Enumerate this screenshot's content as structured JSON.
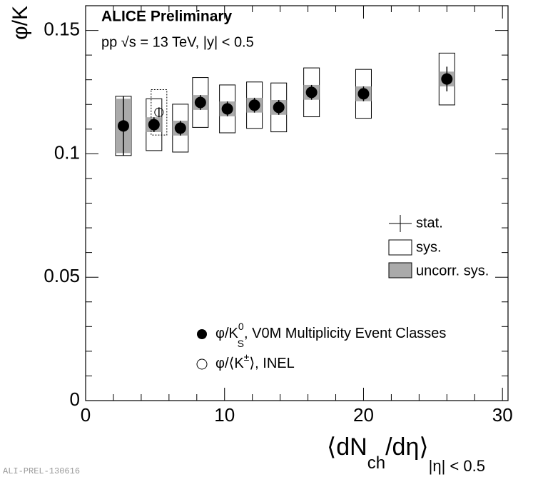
{
  "chart_data": {
    "type": "errorbar",
    "title": "ALICE Preliminary",
    "subtitle": "pp √s = 13 TeV, |y| < 0.5",
    "y_label": "φ/K",
    "x_label": [
      "⟨dN",
      "ch",
      "/dη⟩",
      "|η| < 0.5"
    ],
    "watermark": "ALI-PREL-130616",
    "xlim": [
      0,
      30.4
    ],
    "ylim": [
      0,
      0.16
    ],
    "xticks": [
      0,
      10,
      20,
      30
    ],
    "yticks": [
      0,
      0.05,
      0.1,
      0.15
    ],
    "xticks_minor": [
      2,
      4,
      6,
      8,
      12,
      14,
      16,
      18,
      22,
      24,
      26,
      28
    ],
    "yticks_minor": [
      0.01,
      0.02,
      0.03,
      0.04,
      0.06,
      0.07,
      0.08,
      0.09,
      0.11,
      0.12,
      0.13,
      0.14
    ],
    "error_legend": [
      "stat.",
      "sys.",
      "uncorr. sys."
    ],
    "series": [
      {
        "name": [
          "φ/K",
          "0",
          "S",
          ", V0M Multiplicity Event Classes"
        ],
        "marker": "filled",
        "color": "#000000",
        "x": [
          2.72,
          4.92,
          6.82,
          8.26,
          10.2,
          12.15,
          13.9,
          16.26,
          20,
          26
        ],
        "values": [
          0.1113,
          0.1118,
          0.1104,
          0.1208,
          0.1182,
          0.1197,
          0.1188,
          0.1249,
          0.1243,
          0.1303
        ],
        "stat_err": [
          0.012,
          0.003,
          0.003,
          0.003,
          0.003,
          0.003,
          0.003,
          0.003,
          0.003,
          0.005
        ],
        "sys_err": [
          0.012,
          0.0105,
          0.0097,
          0.0101,
          0.0097,
          0.0094,
          0.0099,
          0.0099,
          0.0099,
          0.0105
        ],
        "uncorr_err": [
          0.011,
          0.003,
          0.003,
          0.003,
          0.003,
          0.003,
          0.003,
          0.003,
          0.003,
          0.003
        ]
      },
      {
        "name": [
          "φ/⟨K",
          "±",
          "⟩, INEL"
        ],
        "marker": "open",
        "color": "#000000",
        "x": [
          5.28
        ],
        "values": [
          0.1168
        ],
        "stat_err": [
          0.002
        ],
        "sys_err": [
          0.0092
        ],
        "uncorr_err": [
          null
        ]
      }
    ]
  }
}
